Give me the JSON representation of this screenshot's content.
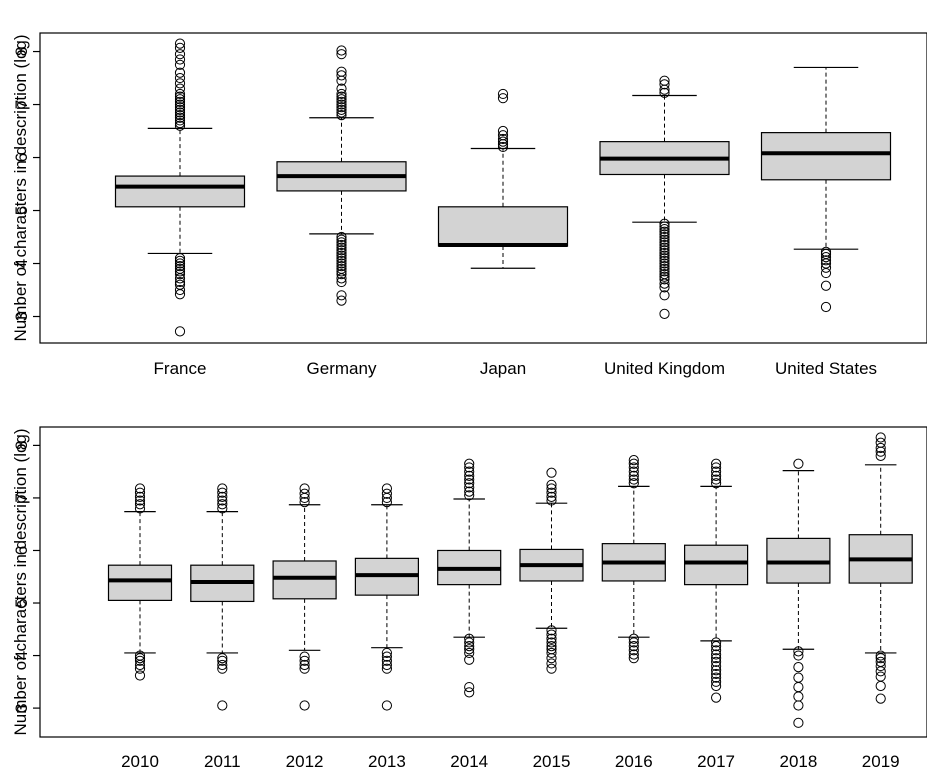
{
  "chart_data": [
    {
      "type": "box",
      "ylabel": "Number of characters in description (log)",
      "ylim": [
        2.5,
        8.35
      ],
      "yticks": [
        3,
        4,
        5,
        6,
        7,
        8
      ],
      "categories": [
        "France",
        "Germany",
        "Japan",
        "United Kingdom",
        "United States"
      ],
      "boxes": [
        {
          "q1": 5.07,
          "median": 5.45,
          "q3": 5.65,
          "whisker_low": 4.19,
          "whisker_high": 6.55,
          "outliers": [
            2.72,
            3.42,
            3.5,
            3.6,
            3.65,
            3.72,
            3.8,
            3.85,
            3.9,
            3.95,
            4.0,
            4.05,
            4.1,
            6.6,
            6.65,
            6.7,
            6.75,
            6.8,
            6.85,
            6.9,
            6.95,
            7.0,
            7.05,
            7.1,
            7.15,
            7.2,
            7.3,
            7.4,
            7.5,
            7.6,
            7.75,
            7.85,
            7.95,
            8.07,
            8.15
          ]
        },
        {
          "q1": 5.37,
          "median": 5.65,
          "q3": 5.92,
          "whisker_low": 4.56,
          "whisker_high": 6.75,
          "outliers": [
            3.3,
            3.4,
            3.65,
            3.72,
            3.8,
            3.85,
            3.9,
            3.95,
            4.0,
            4.05,
            4.1,
            4.15,
            4.2,
            4.25,
            4.3,
            4.35,
            4.4,
            4.45,
            4.5,
            6.8,
            6.85,
            6.9,
            6.95,
            7.0,
            7.05,
            7.1,
            7.15,
            7.2,
            7.3,
            7.45,
            7.55,
            7.62,
            7.95,
            8.02
          ]
        },
        {
          "q1": 4.33,
          "median": 4.35,
          "q3": 5.07,
          "whisker_low": 3.91,
          "whisker_high": 6.17,
          "outliers": [
            6.2,
            6.25,
            6.3,
            6.35,
            6.42,
            6.5,
            7.12,
            7.2
          ]
        },
        {
          "q1": 5.68,
          "median": 5.98,
          "q3": 6.3,
          "whisker_low": 4.78,
          "whisker_high": 7.17,
          "outliers": [
            3.05,
            3.4,
            3.55,
            3.62,
            3.7,
            3.75,
            3.8,
            3.85,
            3.9,
            3.95,
            4.0,
            4.05,
            4.1,
            4.15,
            4.2,
            4.25,
            4.3,
            4.35,
            4.4,
            4.45,
            4.5,
            4.55,
            4.6,
            4.65,
            4.7,
            4.75,
            7.22,
            7.28,
            7.38,
            7.45
          ]
        },
        {
          "q1": 5.58,
          "median": 6.08,
          "q3": 6.47,
          "whisker_low": 4.27,
          "whisker_high": 7.7,
          "outliers": [
            3.18,
            3.58,
            3.82,
            3.92,
            4.0,
            4.06,
            4.12,
            4.18,
            4.22
          ]
        }
      ]
    },
    {
      "type": "box",
      "ylabel": "Number of characters in description (log)",
      "ylim": [
        2.45,
        8.35
      ],
      "yticks": [
        3,
        4,
        5,
        6,
        7,
        8
      ],
      "categories": [
        "2010",
        "2011",
        "2012",
        "2013",
        "2014",
        "2015",
        "2016",
        "2017",
        "2018",
        "2019"
      ],
      "boxes": [
        {
          "q1": 5.05,
          "median": 5.43,
          "q3": 5.72,
          "whisker_low": 4.05,
          "whisker_high": 6.74,
          "outliers": [
            3.62,
            3.75,
            3.82,
            3.9,
            3.95,
            4.0,
            6.8,
            6.88,
            6.95,
            7.02,
            7.1,
            7.18
          ]
        },
        {
          "q1": 5.03,
          "median": 5.4,
          "q3": 5.72,
          "whisker_low": 4.05,
          "whisker_high": 6.74,
          "outliers": [
            3.05,
            3.75,
            3.82,
            3.9,
            3.95,
            6.8,
            6.88,
            6.95,
            7.02,
            7.1,
            7.18
          ]
        },
        {
          "q1": 5.08,
          "median": 5.48,
          "q3": 5.8,
          "whisker_low": 4.1,
          "whisker_high": 6.87,
          "outliers": [
            3.05,
            3.75,
            3.82,
            3.9,
            3.98,
            6.92,
            7.0,
            7.08,
            7.18
          ]
        },
        {
          "q1": 5.15,
          "median": 5.53,
          "q3": 5.85,
          "whisker_low": 4.15,
          "whisker_high": 6.87,
          "outliers": [
            3.05,
            3.75,
            3.82,
            3.9,
            3.98,
            4.05,
            6.92,
            7.0,
            7.08,
            7.18
          ]
        },
        {
          "q1": 5.35,
          "median": 5.65,
          "q3": 6.0,
          "whisker_low": 4.35,
          "whisker_high": 6.98,
          "outliers": [
            3.3,
            3.4,
            3.92,
            4.05,
            4.12,
            4.18,
            4.25,
            4.32,
            7.05,
            7.12,
            7.2,
            7.28,
            7.35,
            7.42,
            7.5,
            7.58,
            7.65
          ]
        },
        {
          "q1": 5.42,
          "median": 5.72,
          "q3": 6.02,
          "whisker_low": 4.52,
          "whisker_high": 6.9,
          "outliers": [
            3.75,
            3.85,
            3.95,
            4.05,
            4.12,
            4.18,
            4.25,
            4.32,
            4.4,
            4.48,
            6.95,
            7.02,
            7.1,
            7.18,
            7.25,
            7.48
          ]
        },
        {
          "q1": 5.42,
          "median": 5.77,
          "q3": 6.13,
          "whisker_low": 4.35,
          "whisker_high": 7.22,
          "outliers": [
            3.95,
            4.02,
            4.1,
            4.18,
            4.25,
            4.32,
            7.28,
            7.35,
            7.42,
            7.5,
            7.58,
            7.65,
            7.72
          ]
        },
        {
          "q1": 5.35,
          "median": 5.77,
          "q3": 6.1,
          "whisker_low": 4.28,
          "whisker_high": 7.22,
          "outliers": [
            3.2,
            3.42,
            3.5,
            3.58,
            3.65,
            3.72,
            3.8,
            3.88,
            3.95,
            4.02,
            4.1,
            4.18,
            4.25,
            7.28,
            7.35,
            7.42,
            7.5,
            7.58,
            7.65
          ]
        },
        {
          "q1": 5.38,
          "median": 5.77,
          "q3": 6.23,
          "whisker_low": 4.12,
          "whisker_high": 7.52,
          "outliers": [
            2.72,
            3.05,
            3.22,
            3.4,
            3.58,
            3.78,
            4.0,
            4.08,
            7.65
          ]
        },
        {
          "q1": 5.38,
          "median": 5.83,
          "q3": 6.3,
          "whisker_low": 4.05,
          "whisker_high": 7.63,
          "outliers": [
            3.18,
            3.42,
            3.6,
            3.7,
            3.8,
            3.88,
            3.95,
            4.0,
            7.8,
            7.88,
            7.95,
            8.05,
            8.15
          ]
        }
      ]
    }
  ]
}
